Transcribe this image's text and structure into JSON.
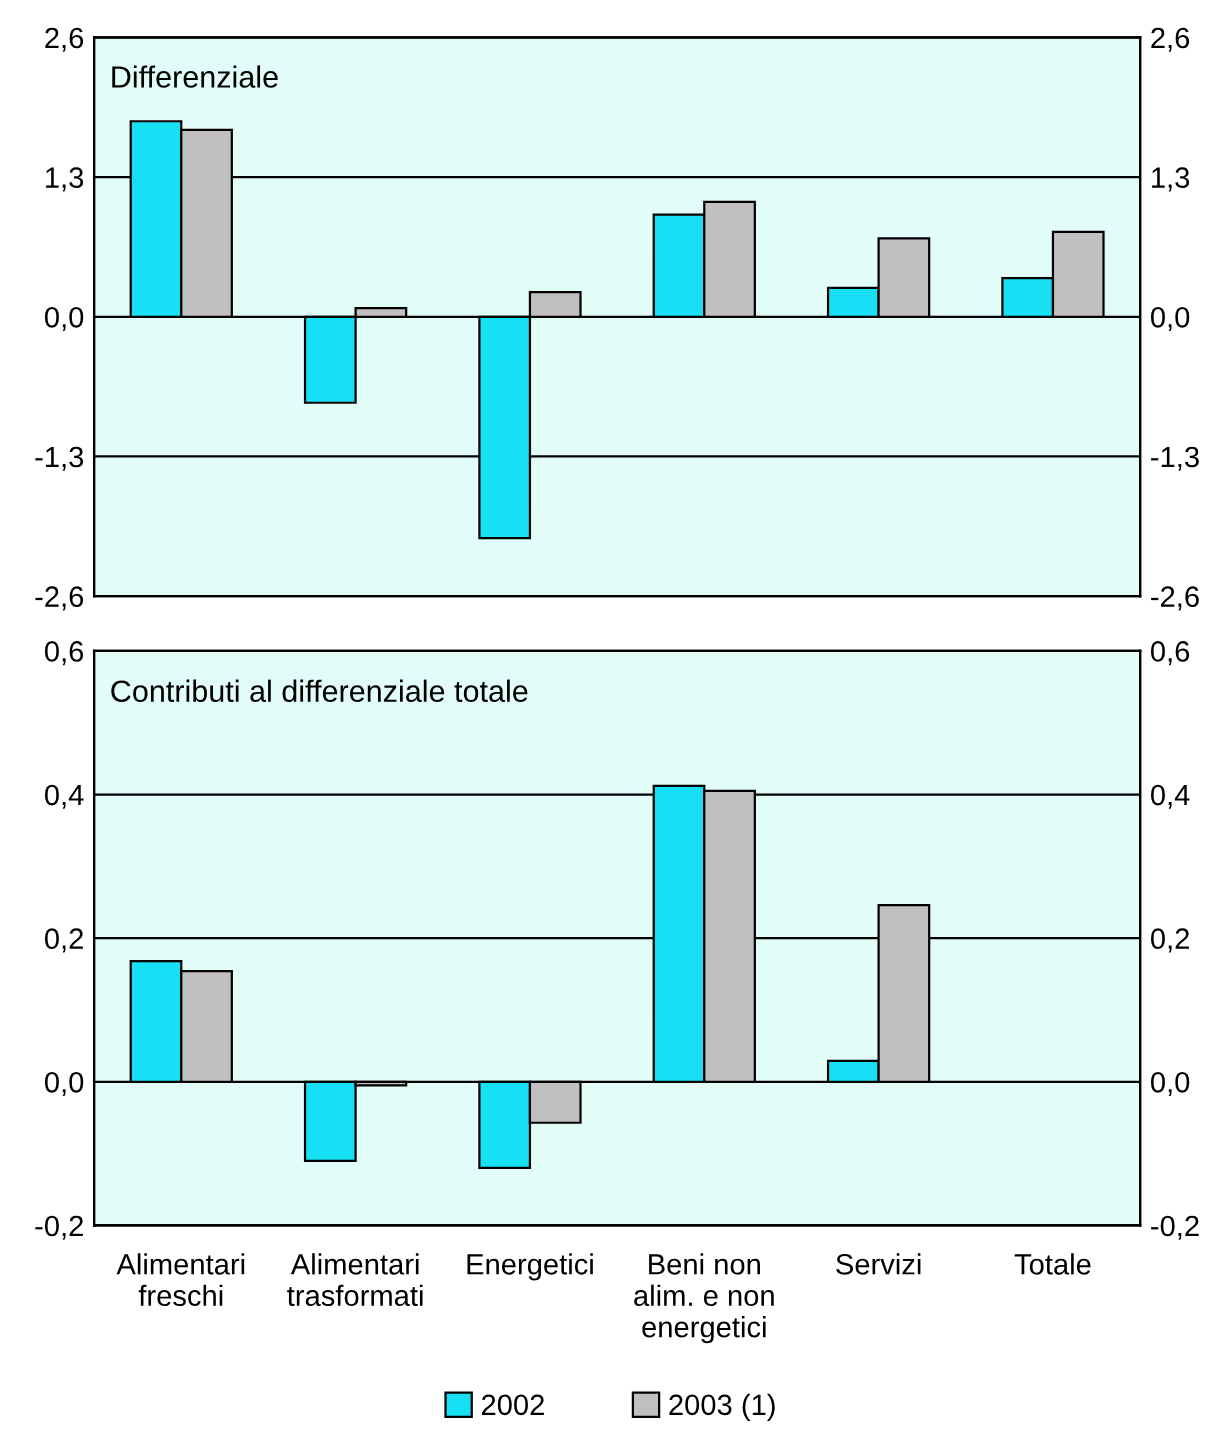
{
  "chart_data": [
    {
      "type": "bar",
      "title": "Differenziale",
      "categories": [
        null,
        null,
        null,
        null,
        null,
        null
      ],
      "series": [
        {
          "color": "#18e0f4",
          "values": [
            1.82,
            -0.8,
            -2.06,
            0.95,
            0.27,
            0.36
          ]
        },
        {
          "color": "#c0c0c0",
          "values": [
            1.74,
            0.08,
            0.23,
            1.07,
            0.73,
            0.79
          ]
        }
      ],
      "ylim": [
        -2.6,
        2.6
      ],
      "yticks": [
        {
          "value": -2.6,
          "label": "-2,6"
        },
        {
          "value": -1.3,
          "label": "-1,3"
        },
        {
          "value": 0,
          "label": "0,0"
        },
        {
          "value": 1.3,
          "label": "1,3"
        },
        {
          "value": 2.6,
          "label": "2,6"
        }
      ],
      "y2lim": [
        -2.6,
        2.6
      ],
      "y2ticks": [
        {
          "value": -2.6,
          "label": "-2,6"
        },
        {
          "value": -1.3,
          "label": "-1,3"
        },
        {
          "value": 0,
          "label": "0,0"
        },
        {
          "value": 1.3,
          "label": "1,3"
        },
        {
          "value": 2.6,
          "label": "2,6"
        }
      ],
      "grid": "y"
    },
    {
      "type": "bar",
      "title": "Contributi al differenziale totale",
      "categories": [
        "Alimentari\nfreschi",
        "Alimentari\ntrasformati",
        "Energetici",
        "Beni non\nalim. e non\nenergetici",
        "Servizi",
        "Totale"
      ],
      "series": [
        {
          "name": "2002",
          "color": "#18e0f4",
          "values": [
            0.168,
            -0.11,
            -0.12,
            0.412,
            0.029,
            null
          ]
        },
        {
          "name": "2003 (1)",
          "color": "#c0c0c0",
          "values": [
            0.154,
            -0.005,
            -0.057,
            0.405,
            0.246,
            null
          ]
        }
      ],
      "ylim": [
        -0.2,
        0.6
      ],
      "yticks": [
        {
          "value": -0.2,
          "label": "-0,2"
        },
        {
          "value": 0,
          "label": "0,0"
        },
        {
          "value": 0.2,
          "label": "0,2"
        },
        {
          "value": 0.4,
          "label": "0,4"
        },
        {
          "value": 0.6,
          "label": "0,6"
        }
      ],
      "y2lim": [
        -0.2,
        0.6
      ],
      "y2ticks": [
        {
          "value": -0.2,
          "label": "-0,2"
        },
        {
          "value": 0,
          "label": "0,0"
        },
        {
          "value": 0.2,
          "label": "0,2"
        },
        {
          "value": 0.4,
          "label": "0,4"
        },
        {
          "value": 0.6,
          "label": "0,6"
        }
      ],
      "grid": "y",
      "legend": "bottom"
    }
  ]
}
